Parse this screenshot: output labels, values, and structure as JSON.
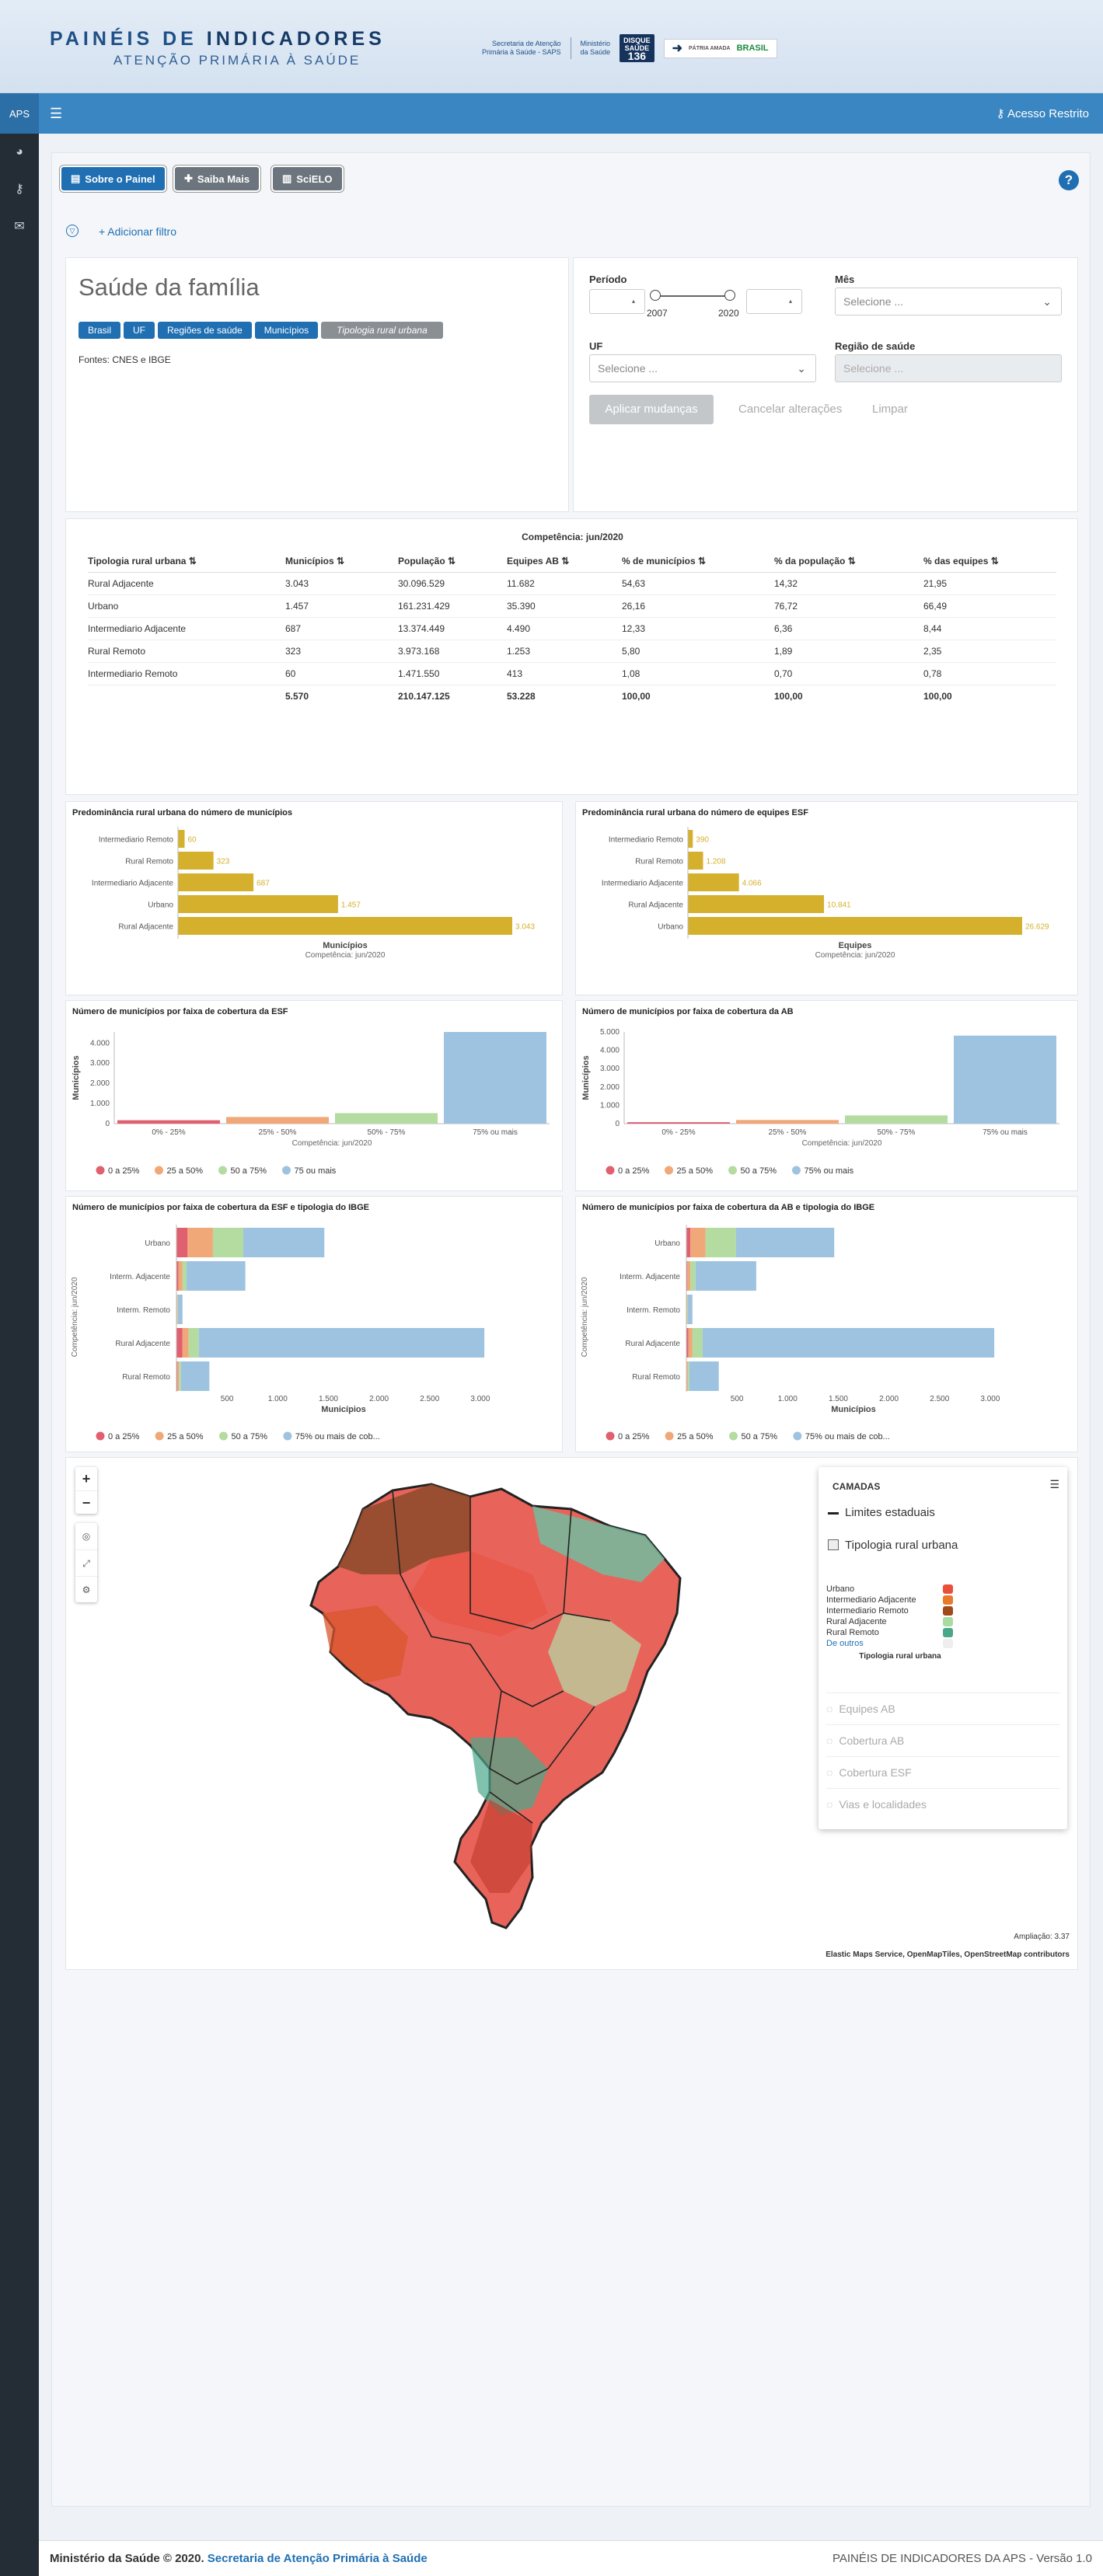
{
  "header": {
    "title_part1": "PAINÉIS DE ",
    "title_part2": "INDICADORES",
    "subtitle": "ATENÇÃO PRIMÁRIA À SAÚDE",
    "secretaria_line1": "Secretaria de Atenção",
    "secretaria_line2": "Primária à Saúde - SAPS",
    "ministerio_line1": "Ministério",
    "ministerio_line2": "da Saúde",
    "disque_line1": "DISQUE",
    "disque_line2": "SAÚDE",
    "disque_number": "136",
    "brasil_label": "BRASIL",
    "patria_label": "PÁTRIA AMADA"
  },
  "navbar": {
    "aps_label": "APS",
    "login_label": "Acesso Restrito"
  },
  "toolbar": {
    "sobre_label": "Sobre o Painel",
    "saiba_label": "Saiba Mais",
    "scielo_label": "SciELO",
    "help_label": "?",
    "add_filter_label": "+ Adicionar filtro"
  },
  "info": {
    "title": "Saúde da família",
    "chips": [
      "Brasil",
      "UF",
      "Regiões de saúde",
      "Municípios",
      "Tipologia rural urbana"
    ],
    "sources": "Fontes: CNES e IBGE"
  },
  "filters": {
    "periodo_label": "Período",
    "year_start": "2007",
    "year_end": "2020",
    "mes_label": "Mês",
    "mes_placeholder": "Selecione ...",
    "uf_label": "UF",
    "uf_placeholder": "Selecione ...",
    "regiao_label": "Região de saúde",
    "regiao_placeholder": "Selecione ...",
    "apply_label": "Aplicar mudanças",
    "cancel_label": "Cancelar alterações",
    "clear_label": "Limpar"
  },
  "table": {
    "caption": "Competência: jun/2020",
    "headers": [
      "Tipologia rural urbana",
      "Municípios",
      "População",
      "Equipes AB",
      "% de municípios",
      "% da população",
      "% das equipes"
    ],
    "rows": [
      [
        "Rural Adjacente",
        "3.043",
        "30.096.529",
        "11.682",
        "54,63",
        "14,32",
        "21,95"
      ],
      [
        "Urbano",
        "1.457",
        "161.231.429",
        "35.390",
        "26,16",
        "76,72",
        "66,49"
      ],
      [
        "Intermediario Adjacente",
        "687",
        "13.374.449",
        "4.490",
        "12,33",
        "6,36",
        "8,44"
      ],
      [
        "Rural Remoto",
        "323",
        "3.973.168",
        "1.253",
        "5,80",
        "1,89",
        "2,35"
      ],
      [
        "Intermediario Remoto",
        "60",
        "1.471.550",
        "413",
        "1,08",
        "0,70",
        "0,78"
      ]
    ],
    "totals": [
      "",
      "5.570",
      "210.147.125",
      "53.228",
      "100,00",
      "100,00",
      "100,00"
    ]
  },
  "colors": {
    "green": "#b4dba0",
    "orange": "#f0a878",
    "red": "#e06070",
    "blue": "#9ec3e0",
    "gold": "#d4b02c"
  },
  "chart_data": [
    {
      "type": "bar",
      "orientation": "horizontal",
      "title": "Predominância rural urbana do número de municípios",
      "categories": [
        "Intermediario Remoto",
        "Rural Remoto",
        "Intermediario Adjacente",
        "Urbano",
        "Rural Adjacente"
      ],
      "values": [
        60,
        323,
        687,
        1457,
        3043
      ],
      "value_labels": [
        "60",
        "323",
        "687",
        "1.457",
        "3.043"
      ],
      "xlabel": "Municípios",
      "subtitle": "Competência: jun/2020",
      "xlim": [
        0,
        3043
      ]
    },
    {
      "type": "bar",
      "orientation": "horizontal",
      "title": "Predominância rural urbana do número de equipes ESF",
      "categories": [
        "Intermediario Remoto",
        "Rural Remoto",
        "Intermediario Adjacente",
        "Rural Adjacente",
        "Urbano"
      ],
      "values": [
        390,
        1208,
        4066,
        10841,
        26629
      ],
      "value_labels": [
        "390",
        "1.208",
        "4.066",
        "10.841",
        "26.629"
      ],
      "xlabel": "Equipes",
      "subtitle": "Competência: jun/2020",
      "xlim": [
        0,
        26629
      ]
    },
    {
      "type": "bar",
      "title": "Número de municípios por faixa de cobertura da ESF",
      "categories": [
        "0% - 25%",
        "25% - 50%",
        "50% - 75%",
        "75% ou mais"
      ],
      "values": [
        170,
        330,
        520,
        4550
      ],
      "ylabel": "Municípios",
      "xlabel": "Competência: jun/2020",
      "yticks": [
        "0",
        "1.000",
        "2.000",
        "3.000",
        "4.000"
      ],
      "ylim": [
        0,
        4550
      ],
      "legend": [
        "0 a 25%",
        "25 a 50%",
        "50 a 75%",
        "75 ou mais"
      ]
    },
    {
      "type": "bar",
      "title": "Número de municípios por faixa de cobertura da AB",
      "categories": [
        "0% - 25%",
        "25% - 50%",
        "50% - 75%",
        "75% ou mais"
      ],
      "values": [
        80,
        200,
        450,
        4800
      ],
      "ylabel": "Municípios",
      "xlabel": "Competência: jun/2020",
      "yticks": [
        "0",
        "1.000",
        "2.000",
        "3.000",
        "4.000",
        "5.000"
      ],
      "ylim": [
        0,
        5000
      ],
      "legend": [
        "0 a 25%",
        "25 a 50%",
        "50 a 75%",
        "75% ou mais"
      ]
    },
    {
      "type": "bar",
      "stacked": true,
      "orientation": "horizontal",
      "title": "Número de municípios por faixa de cobertura da ESF e tipologia do IBGE",
      "categories": [
        "Urbano",
        "Interm. Adjacente",
        "Interm. Remoto",
        "Rural Adjacente",
        "Rural Remoto"
      ],
      "series": [
        {
          "name": "0 a 25%",
          "values": [
            110,
            20,
            5,
            60,
            10
          ]
        },
        {
          "name": "25 a 50%",
          "values": [
            250,
            40,
            5,
            60,
            15
          ]
        },
        {
          "name": "50 a 75%",
          "values": [
            300,
            40,
            5,
            100,
            20
          ]
        },
        {
          "name": "75% ou mais de cob...",
          "values": [
            800,
            580,
            45,
            2820,
            280
          ]
        }
      ],
      "xlabel": "Municípios",
      "ylabel": "Competência: jun/2020",
      "xticks": [
        "500",
        "1.000",
        "1.500",
        "2.000",
        "2.500",
        "3.000"
      ],
      "xlim": [
        0,
        3300
      ]
    },
    {
      "type": "bar",
      "stacked": true,
      "orientation": "horizontal",
      "title": "Número de municípios por faixa de cobertura da AB e tipologia do IBGE",
      "categories": [
        "Urbano",
        "Interm. Adjacente",
        "Interm. Remoto",
        "Rural Adjacente",
        "Rural Remoto"
      ],
      "series": [
        {
          "name": "0 a 25%",
          "values": [
            40,
            10,
            3,
            20,
            5
          ]
        },
        {
          "name": "25 a 50%",
          "values": [
            150,
            30,
            5,
            40,
            10
          ]
        },
        {
          "name": "50 a 75%",
          "values": [
            300,
            50,
            7,
            100,
            15
          ]
        },
        {
          "name": "75% ou mais de cob...",
          "values": [
            970,
            600,
            45,
            2880,
            290
          ]
        }
      ],
      "xlabel": "Municípios",
      "ylabel": "Competência: jun/2020",
      "xticks": [
        "500",
        "1.000",
        "1.500",
        "2.000",
        "2.500",
        "3.000"
      ],
      "xlim": [
        0,
        3300
      ]
    }
  ],
  "map": {
    "layers_title": "CAMADAS",
    "layer_limites": "Limites estaduais",
    "layer_tipologia": "Tipologia rural urbana",
    "legend_items": [
      {
        "label": "Urbano",
        "color": "#e8503c"
      },
      {
        "label": "Intermediario Adjacente",
        "color": "#e87a2a"
      },
      {
        "label": "Intermediario Remoto",
        "color": "#a04a1c"
      },
      {
        "label": "Rural Adjacente",
        "color": "#a8dca0"
      },
      {
        "label": "Rural Remoto",
        "color": "#4aa88a"
      }
    ],
    "others_label": "De outros",
    "legend_caption": "Tipologia rural urbana",
    "hidden_layers": [
      "Equipes AB",
      "Cobertura AB",
      "Cobertura ESF",
      "Vias e localidades"
    ],
    "zoom_text": "Ampliação: 3.37",
    "attribution": "Elastic Maps Service, OpenMapTiles, OpenStreetMap contributors"
  },
  "footer": {
    "left_text": "Ministério da Saúde © 2020.",
    "left_link": "Secretaria de Atenção Primária à Saúde",
    "right_text": "PAINÉIS DE INDICADORES DA APS - Versão 1.0"
  }
}
